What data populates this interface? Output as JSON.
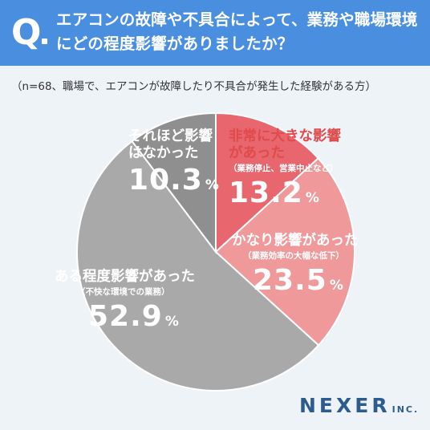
{
  "header": {
    "badge": "Q",
    "question_line1": "エアコンの故障や不具合によって、業務や職場環境",
    "question_line2": "にどの程度影響がありましたか？"
  },
  "subtitle": "（n=68、職場で、エアコンが故障したり不具合が発生した経験がある方）",
  "colors": {
    "header": "#4a8ee0",
    "background": "#eef3f8",
    "label_red": "#e04a4a"
  },
  "chart_data": {
    "type": "pie",
    "title": "",
    "start": "12 o'clock, clockwise",
    "slices": [
      {
        "label": "非常に大きな影響があった",
        "note": "（業務停止、営業中止など）",
        "value": 13.2,
        "pct_text": "13.2",
        "unit": "%",
        "color": "#e8666d"
      },
      {
        "label": "かなり影響があった",
        "note": "（業務効率の大幅な低下）",
        "value": 23.5,
        "pct_text": "23.5",
        "unit": "%",
        "color": "#f0999b"
      },
      {
        "label": "ある程度影響があった",
        "note": "（不快な環境での業務）",
        "value": 52.9,
        "pct_text": "52.9",
        "unit": "%",
        "color": "#a9a9a9"
      },
      {
        "label": "それほど影響はなかった",
        "note": "",
        "value": 10.3,
        "pct_text": "10.3",
        "unit": "%",
        "color": "#8f8f8f"
      }
    ],
    "label_lines": {
      "s0": [
        "非常に大きな影響",
        "があった"
      ],
      "s3": [
        "それほど影響",
        "はなかった"
      ]
    }
  },
  "logo": {
    "main": "NEXER",
    "suffix": "INC."
  }
}
